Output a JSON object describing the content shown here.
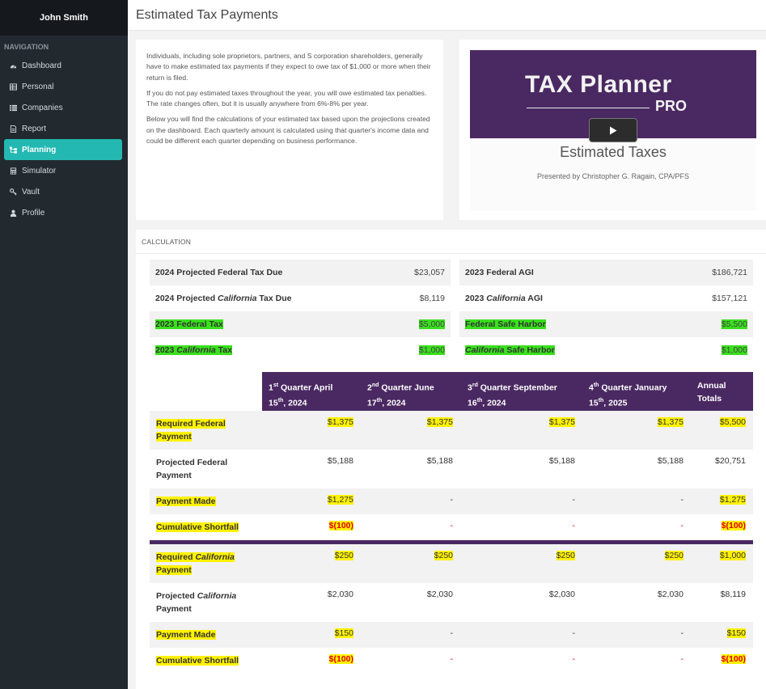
{
  "sidebar": {
    "user_name": "John Smith",
    "nav_heading": "NAVIGATION",
    "items": [
      {
        "label": "Dashboard",
        "icon": "dashboard-icon"
      },
      {
        "label": "Personal",
        "icon": "table-icon"
      },
      {
        "label": "Companies",
        "icon": "list-icon"
      },
      {
        "label": "Report",
        "icon": "file-icon"
      },
      {
        "label": "Planning",
        "icon": "sitemap-icon",
        "active": true
      },
      {
        "label": "Simulator",
        "icon": "calculator-icon"
      },
      {
        "label": "Vault",
        "icon": "key-icon"
      },
      {
        "label": "Profile",
        "icon": "user-icon"
      }
    ]
  },
  "header": {
    "title": "Estimated Tax Payments"
  },
  "intro": {
    "p1": "Individuals, including sole proprietors, partners, and S corporation shareholders, generally have to make estimated tax payments if they expect to owe tax of $1,000 or more when their return is filed.",
    "p2": "If you do not pay estimated taxes throughout the year, you will owe estimated tax penalties. The rate changes often, but it is usually anywhere from 6%-8% per year.",
    "p3": "Below you will find the calculations of your estimated tax based upon the projections created on the dashboard. Each quarterly amount is calculated using that quarter's income data and could be different each quarter depending on business performance."
  },
  "video": {
    "brand_main": "TAX Planner",
    "brand_sub": "PRO",
    "title": "Estimated Taxes",
    "presenter": "Presented by Christopher G. Ragain, CPA/PFS"
  },
  "calc": {
    "heading": "CALCULATION",
    "left": [
      {
        "pre": "2024 Projected ",
        "em": "",
        "post": "Federal Tax Due",
        "value": "$23,057"
      },
      {
        "pre": "2024 Projected ",
        "em": "California",
        "post": " Tax Due",
        "value": "$8,119"
      },
      {
        "pre": "2023 Federal Tax",
        "em": "",
        "post": "",
        "value": "$5,000"
      },
      {
        "pre": "2023 ",
        "em": "California",
        "post": " Tax",
        "value": "$1,000"
      }
    ],
    "right": [
      {
        "pre": "2023 Federal AGI",
        "em": "",
        "post": "",
        "value": "$186,721"
      },
      {
        "pre": "2023 ",
        "em": "California",
        "post": " AGI",
        "value": "$157,121"
      },
      {
        "pre": "Federal Safe Harbor",
        "em": "",
        "post": "",
        "value": "$5,500"
      },
      {
        "pre": "",
        "em": "California",
        "post": " Safe Harbor",
        "value": "$1,000"
      }
    ],
    "quarters": {
      "q1": {
        "n": "1",
        "sup": "st",
        "a": " Quarter April",
        "b": "15",
        "bsup": "th",
        "c": ", 2024"
      },
      "q2": {
        "n": "2",
        "sup": "nd",
        "a": " Quarter June",
        "b": "17",
        "bsup": "th",
        "c": ", 2024"
      },
      "q3": {
        "n": "3",
        "sup": "rd",
        "a": " Quarter September",
        "b": "16",
        "bsup": "th",
        "c": ", 2024"
      },
      "q4": {
        "n": "4",
        "sup": "th",
        "a": " Quarter January",
        "b": "15",
        "bsup": "th",
        "c": ", 2025"
      },
      "total_a": "Annual",
      "total_b": "Totals"
    },
    "federal": {
      "required": {
        "l1": "Required Federal",
        "l2": "Payment",
        "v": [
          "$1,375",
          "$1,375",
          "$1,375",
          "$1,375",
          "$5,500"
        ]
      },
      "projected": {
        "l1": "Projected Federal",
        "l2": "Payment",
        "v": [
          "$5,188",
          "$5,188",
          "$5,188",
          "$5,188",
          "$20,751"
        ]
      },
      "made": {
        "l1": "Payment Made",
        "v": [
          "$1,275",
          "-",
          "-",
          "-",
          "$1,275"
        ]
      },
      "shortfall": {
        "l1": "Cumulative Shortfall",
        "v": [
          "$(100)",
          "-",
          "-",
          "-",
          "$(100)"
        ]
      }
    },
    "california": {
      "required": {
        "pre": "Required ",
        "em": "California",
        "l2": "Payment",
        "v": [
          "$250",
          "$250",
          "$250",
          "$250",
          "$1,000"
        ]
      },
      "projected": {
        "pre": "Projected ",
        "em": "California",
        "l2": "Payment",
        "v": [
          "$2,030",
          "$2,030",
          "$2,030",
          "$2,030",
          "$8,119"
        ]
      },
      "made": {
        "l1": "Payment Made",
        "v": [
          "$150",
          "-",
          "-",
          "-",
          "$150"
        ]
      },
      "shortfall": {
        "l1": "Cumulative Shortfall",
        "v": [
          "$(100)",
          "-",
          "-",
          "-",
          "$(100)"
        ]
      }
    }
  },
  "colors": {
    "sidebar_bg": "#222a30",
    "accent_teal": "#23b8b1",
    "header_purple": "#4a2962",
    "highlight_yellow": "#fff200",
    "highlight_green": "#39e01c",
    "negative_red": "#e00000"
  }
}
